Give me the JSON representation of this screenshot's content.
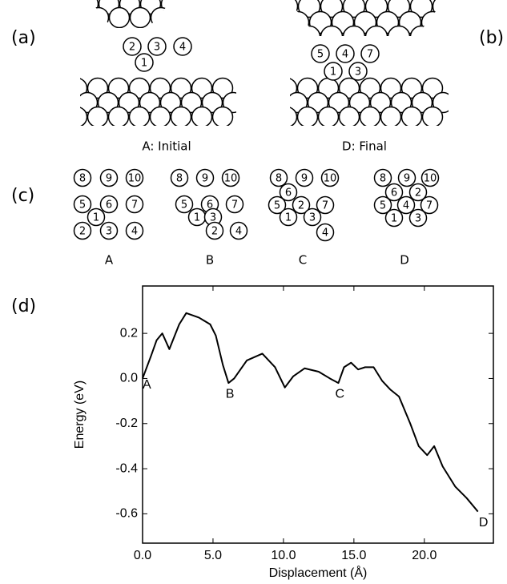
{
  "panel_labels": [
    "(a)",
    "(b)",
    "(c)",
    "(d)"
  ],
  "structures": [
    {
      "caption": "A: Initial",
      "atoms": [
        "2",
        "3",
        "4",
        "1"
      ]
    },
    {
      "caption": "D: Final",
      "atoms": [
        "5",
        "4",
        "7",
        "1",
        "3"
      ]
    }
  ],
  "configurations": [
    {
      "caption": "A",
      "atoms": [
        "8",
        "9",
        "10",
        "5",
        "6",
        "7",
        "1",
        "2",
        "3",
        "4"
      ]
    },
    {
      "caption": "B",
      "atoms": [
        "8",
        "9",
        "10",
        "5",
        "6",
        "7",
        "1",
        "3",
        "2",
        "4"
      ]
    },
    {
      "caption": "C",
      "atoms": [
        "8",
        "9",
        "10",
        "6",
        "5",
        "2",
        "7",
        "1",
        "3",
        "4"
      ]
    },
    {
      "caption": "D",
      "atoms": [
        "8",
        "9",
        "10",
        "6",
        "2",
        "5",
        "4",
        "7",
        "1",
        "3"
      ]
    }
  ],
  "chart_data": {
    "type": "line",
    "x_label": "Displacement  (Å)",
    "y_label": "Energy  (eV)",
    "x": [
      0,
      0.6,
      1.0,
      1.4,
      1.9,
      2.6,
      3.1,
      4.0,
      4.8,
      5.2,
      5.7,
      6.1,
      6.5,
      7.4,
      8.5,
      9.4,
      10.1,
      10.7,
      11.5,
      12.5,
      13.3,
      13.9,
      14.3,
      14.8,
      15.3,
      15.8,
      16.4,
      17.0,
      17.6,
      18.2,
      19.0,
      19.6,
      20.2,
      20.7,
      21.3,
      22.2,
      23.0,
      23.8
    ],
    "series": [
      {
        "name": "Energy",
        "color": "#000000",
        "values": [
          0.0,
          0.1,
          0.17,
          0.2,
          0.13,
          0.24,
          0.29,
          0.27,
          0.24,
          0.19,
          0.06,
          -0.02,
          0.0,
          0.08,
          0.11,
          0.05,
          -0.04,
          0.01,
          0.045,
          0.03,
          0.0,
          -0.02,
          0.05,
          0.07,
          0.04,
          0.05,
          0.05,
          -0.01,
          -0.05,
          -0.08,
          -0.2,
          -0.3,
          -0.34,
          -0.3,
          -0.39,
          -0.48,
          -0.53,
          -0.59
        ]
      }
    ],
    "xlim": [
      0,
      24.9
    ],
    "ylim": [
      -0.73,
      0.41
    ],
    "xticks": [
      {
        "value": 0,
        "label": "0.0"
      },
      {
        "value": 5,
        "label": "5.0"
      },
      {
        "value": 10,
        "label": "10.0"
      },
      {
        "value": 15,
        "label": "15.0"
      },
      {
        "value": 20,
        "label": "20.0"
      }
    ],
    "yticks": [
      0.2,
      {
        "value": 0,
        "label": "0.0"
      },
      -0.2,
      -0.4,
      -0.6
    ],
    "annotations": [
      {
        "text": "A",
        "x": 0.3,
        "y": -0.03
      },
      {
        "text": "B",
        "x": 6.2,
        "y": -0.07
      },
      {
        "text": "C",
        "x": 14.0,
        "y": -0.07
      },
      {
        "text": "D",
        "x": 24.2,
        "y": -0.64
      }
    ]
  }
}
